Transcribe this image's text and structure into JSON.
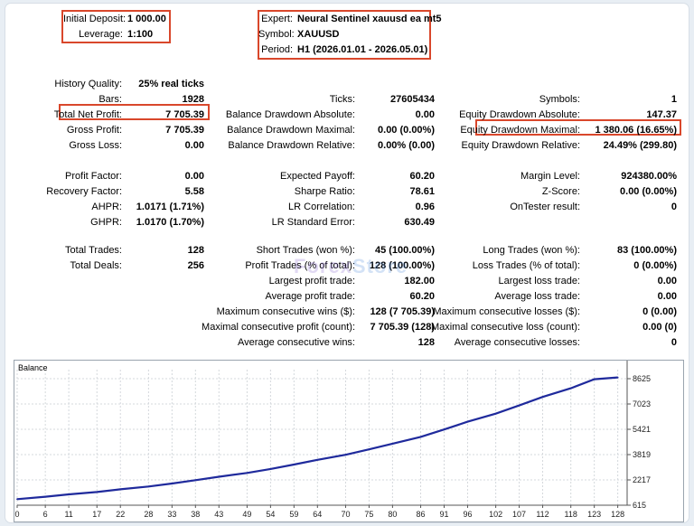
{
  "header_left": {
    "deposit_label": "Initial Deposit:",
    "deposit_value": "1 000.00",
    "leverage_label": "Leverage:",
    "leverage_value": "1:100"
  },
  "header_right": {
    "expert_label": "Expert:",
    "expert_value": "Neural Sentinel xauusd ea mt5",
    "symbol_label": "Symbol:",
    "symbol_value": "XAUUSD",
    "period_label": "Period:",
    "period_value": "H1 (2026.01.01 - 2026.05.01)"
  },
  "stats": {
    "col1": [
      {
        "label": "History Quality:",
        "value": "25% real ticks"
      },
      {
        "label": "Bars:",
        "value": "1928"
      },
      {
        "label": "Total Net Profit:",
        "value": "7 705.39"
      },
      {
        "label": "Gross Profit:",
        "value": "7 705.39"
      },
      {
        "label": "Gross Loss:",
        "value": "0.00"
      },
      {
        "label": "Profit Factor:",
        "value": "0.00"
      },
      {
        "label": "Recovery Factor:",
        "value": "5.58"
      },
      {
        "label": "AHPR:",
        "value": "1.0171 (1.71%)"
      },
      {
        "label": "GHPR:",
        "value": "1.0170 (1.70%)"
      },
      {
        "label": "Total Trades:",
        "value": "128"
      },
      {
        "label": "Total Deals:",
        "value": "256"
      }
    ],
    "col2": [
      {
        "label": "Ticks:",
        "value": "27605434"
      },
      {
        "label": "Balance Drawdown Absolute:",
        "value": "0.00"
      },
      {
        "label": "Balance Drawdown Maximal:",
        "value": "0.00 (0.00%)"
      },
      {
        "label": "Balance Drawdown Relative:",
        "value": "0.00% (0.00)"
      },
      {
        "label": "Expected Payoff:",
        "value": "60.20"
      },
      {
        "label": "Sharpe Ratio:",
        "value": "78.61"
      },
      {
        "label": "LR Correlation:",
        "value": "0.96"
      },
      {
        "label": "LR Standard Error:",
        "value": "630.49"
      },
      {
        "label": "Short Trades (won %):",
        "value": "45 (100.00%)"
      },
      {
        "label": "Profit Trades (% of total):",
        "value": "128 (100.00%)"
      },
      {
        "label": "Largest profit trade:",
        "value": "182.00"
      },
      {
        "label": "Average profit trade:",
        "value": "60.20"
      },
      {
        "label": "Maximum consecutive wins ($):",
        "value": "128 (7 705.39)"
      },
      {
        "label": "Maximal consecutive profit (count):",
        "value": "7 705.39 (128)"
      },
      {
        "label": "Average consecutive wins:",
        "value": "128"
      }
    ],
    "col3": [
      {
        "label": "Symbols:",
        "value": "1"
      },
      {
        "label": "Equity Drawdown Absolute:",
        "value": "147.37"
      },
      {
        "label": "Equity Drawdown Maximal:",
        "value": "1 380.06 (16.65%)"
      },
      {
        "label": "Equity Drawdown Relative:",
        "value": "24.49% (299.80)"
      },
      {
        "label": "Margin Level:",
        "value": "924380.00%"
      },
      {
        "label": "Z-Score:",
        "value": "0.00 (0.00%)"
      },
      {
        "label": "OnTester result:",
        "value": "0"
      },
      {
        "label": "Long Trades (won %):",
        "value": "83 (100.00%)"
      },
      {
        "label": "Loss Trades (% of total):",
        "value": "0 (0.00%)"
      },
      {
        "label": "Largest loss trade:",
        "value": "0.00"
      },
      {
        "label": "Average loss trade:",
        "value": "0.00"
      },
      {
        "label": "Maximum consecutive losses ($):",
        "value": "0 (0.00)"
      },
      {
        "label": "Maximal consecutive loss (count):",
        "value": "0.00 (0)"
      },
      {
        "label": "Average consecutive losses:",
        "value": "0"
      }
    ]
  },
  "watermark": {
    "part1": "Forex",
    "part2": "Store"
  },
  "colors": {
    "highlight": "#d9472b",
    "balance_line": "#1f2a9c"
  },
  "chart_data": {
    "type": "line",
    "title": "Balance",
    "x": [
      0,
      6,
      11,
      17,
      22,
      28,
      33,
      38,
      43,
      49,
      54,
      59,
      64,
      70,
      75,
      80,
      86,
      91,
      96,
      102,
      107,
      112,
      118,
      123,
      128
    ],
    "series": [
      {
        "values": [
          1000,
          1150,
          1300,
          1450,
          1620,
          1800,
          1990,
          2200,
          2420,
          2660,
          2910,
          3190,
          3490,
          3810,
          4150,
          4510,
          4940,
          5410,
          5900,
          6410,
          6930,
          7470,
          8020,
          8590,
          8705
        ]
      }
    ],
    "xlim": [
      0,
      130
    ],
    "ylim": [
      615,
      8625
    ],
    "yticks": [
      615,
      2217,
      3819,
      5421,
      7023,
      8625
    ],
    "xticks": [
      0,
      6,
      11,
      17,
      22,
      28,
      33,
      38,
      43,
      49,
      54,
      59,
      64,
      70,
      75,
      80,
      86,
      91,
      96,
      102,
      107,
      112,
      118,
      123,
      128
    ],
    "grid": true
  }
}
